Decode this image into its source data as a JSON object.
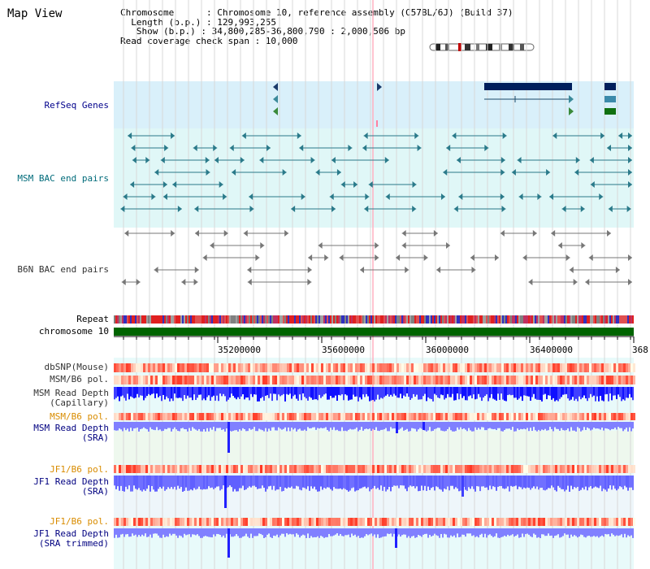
{
  "title": "Map View",
  "info": {
    "line1": "Chromosome      : Chromosome 10, reference assembly (C57BL/6J) (Build 37)",
    "line2": "  Length (b.p.) : 129,993,255",
    "line3": "   Show (b.p.) : 34,800,285-36,800,790 : 2,000,506 bp",
    "line4": "Read coverage check span : 10,000"
  },
  "tracks": {
    "refseq": "RefSeq Genes",
    "msm_bac": "MSM BAC end pairs",
    "b6n_bac": "B6N BAC end pairs",
    "repeat": "Repeat",
    "chromosome": "chromosome 10",
    "dbsnp": "dbSNP(Mouse)",
    "msm_pol": "MSM/B6 pol.",
    "msm_depth_cap": "MSM Read Depth\n(Capillary)",
    "msm_pol2": "MSM/B6 pol.",
    "msm_depth_sra": "MSM Read Depth\n(SRA)",
    "jf1_pol": "JF1/B6 pol.",
    "jf1_depth_sra": "JF1 Read Depth\n(SRA)",
    "jf1_pol2": "JF1/B6 pol.",
    "jf1_depth_trim": "JF1 Read Depth\n(SRA trimmed)"
  },
  "axis": {
    "ticks": [
      "35200000",
      "35600000",
      "36000000",
      "36400000",
      "368"
    ]
  },
  "colors": {
    "refseq_bg": "#d9f0fa",
    "msm_bg": "#e0f7f7",
    "chromosome": "#006400",
    "depth_blue": "#2020ff",
    "depth_light": "#8080ff",
    "pol_red": "#ff3030"
  }
}
